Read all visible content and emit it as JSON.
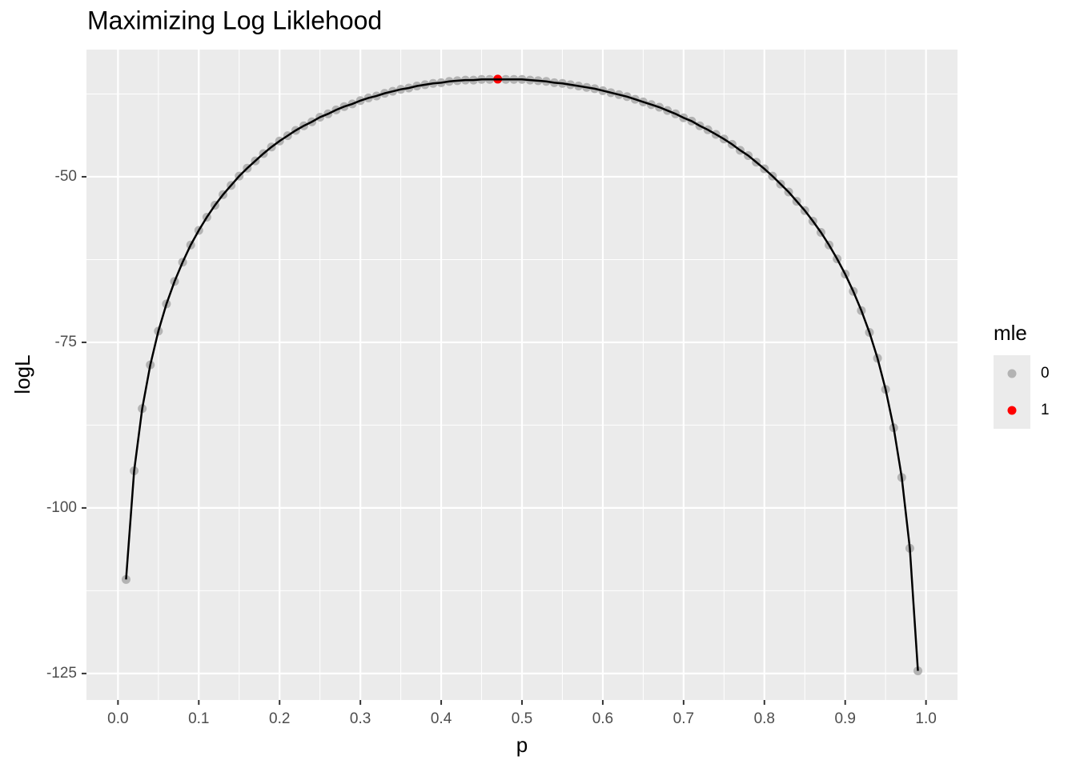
{
  "chart_data": {
    "type": "scatter",
    "title": "Maximizing Log Liklehood",
    "x_label": "p",
    "y_label": "logL",
    "legend_title": "mle",
    "grid": true,
    "line_color": "#000000",
    "xlim": [
      -0.039,
      1.039
    ],
    "ylim": [
      -129.0,
      -30.8
    ],
    "xticks": [
      {
        "value": 0,
        "label": "0.0"
      },
      0.1,
      0.2,
      0.3,
      0.4,
      0.5,
      0.6,
      0.7,
      0.8,
      0.9,
      {
        "value": 1,
        "label": "1.0"
      }
    ],
    "yticks": [
      -125,
      -100,
      -75,
      -50
    ],
    "series": [
      {
        "name": "0",
        "color": "#b3b3b3",
        "x": [
          0.01,
          0.02,
          0.03,
          0.04,
          0.05,
          0.06,
          0.07,
          0.08,
          0.09,
          0.1,
          0.11,
          0.12,
          0.13,
          0.14,
          0.15,
          0.16,
          0.17,
          0.18,
          0.19,
          0.2,
          0.21,
          0.22,
          0.23,
          0.24,
          0.25,
          0.26,
          0.27,
          0.28,
          0.29,
          0.3,
          0.31,
          0.32,
          0.33,
          0.34,
          0.35,
          0.36,
          0.37,
          0.38,
          0.39,
          0.4,
          0.41,
          0.42,
          0.43,
          0.44,
          0.45,
          0.46,
          0.48,
          0.49,
          0.5,
          0.51,
          0.52,
          0.53,
          0.54,
          0.55,
          0.56,
          0.57,
          0.58,
          0.59,
          0.6,
          0.61,
          0.62,
          0.63,
          0.64,
          0.65,
          0.66,
          0.67,
          0.68,
          0.69,
          0.7,
          0.71,
          0.72,
          0.73,
          0.74,
          0.75,
          0.76,
          0.77,
          0.78,
          0.79,
          0.8,
          0.81,
          0.82,
          0.83,
          0.84,
          0.85,
          0.86,
          0.87,
          0.88,
          0.89,
          0.9,
          0.91,
          0.92,
          0.93,
          0.94,
          0.95,
          0.96,
          0.97,
          0.98,
          0.99
        ],
        "values": [
          -110.8,
          -94.4,
          -85.0,
          -78.4,
          -73.3,
          -69.2,
          -65.8,
          -62.9,
          -60.3,
          -58.1,
          -56.1,
          -54.3,
          -52.7,
          -51.3,
          -49.9,
          -48.7,
          -47.6,
          -46.5,
          -45.5,
          -44.6,
          -43.8,
          -43.0,
          -42.3,
          -41.7,
          -41.0,
          -40.5,
          -39.9,
          -39.4,
          -39.0,
          -38.5,
          -38.1,
          -37.8,
          -37.4,
          -37.1,
          -36.8,
          -36.6,
          -36.3,
          -36.1,
          -35.9,
          -35.8,
          -35.6,
          -35.5,
          -35.4,
          -35.4,
          -35.3,
          -35.3,
          -35.3,
          -35.3,
          -35.3,
          -35.4,
          -35.5,
          -35.6,
          -35.8,
          -35.9,
          -36.1,
          -36.3,
          -36.5,
          -36.7,
          -37.0,
          -37.3,
          -37.6,
          -37.9,
          -38.3,
          -38.7,
          -39.1,
          -39.5,
          -40.0,
          -40.5,
          -41.1,
          -41.6,
          -42.3,
          -42.9,
          -43.6,
          -44.3,
          -45.1,
          -46.0,
          -46.8,
          -47.8,
          -48.8,
          -49.9,
          -51.1,
          -52.3,
          -53.7,
          -55.1,
          -56.7,
          -58.4,
          -60.3,
          -62.4,
          -64.7,
          -67.3,
          -70.2,
          -73.5,
          -77.4,
          -82.1,
          -87.9,
          -95.4,
          -106.1,
          -124.6
        ]
      },
      {
        "name": "1",
        "color": "#ff0000",
        "x": [
          0.47
        ],
        "values": [
          -35.26
        ]
      }
    ]
  }
}
